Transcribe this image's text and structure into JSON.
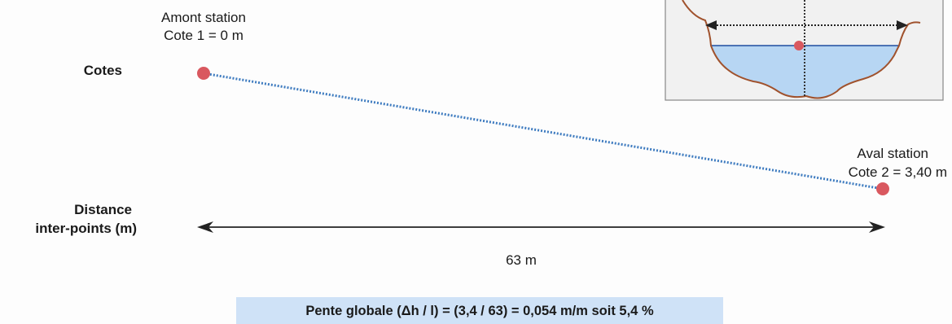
{
  "labels": {
    "amont_title": "Amont station",
    "amont_cote": "Cote 1 = 0 m",
    "aval_title": "Aval station",
    "aval_cote": "Cote 2 = 3,40 m",
    "cotes": "Cotes",
    "distance_line1": "Distance",
    "distance_line2": "inter-points (m)",
    "distance_value": "63 m",
    "formula": "Pente globale (Δh / l) =  (3,4 / 63) = 0,054 m/m soit 5,4 %"
  },
  "colors": {
    "point": "#d9585f",
    "slope_line": "#3f7cc0",
    "arrow": "#222222",
    "formula_bg": "#cfe2f7",
    "water": "#b7d6f3",
    "bank": "#a0522d",
    "inset_bg": "#f1f1f1"
  }
}
